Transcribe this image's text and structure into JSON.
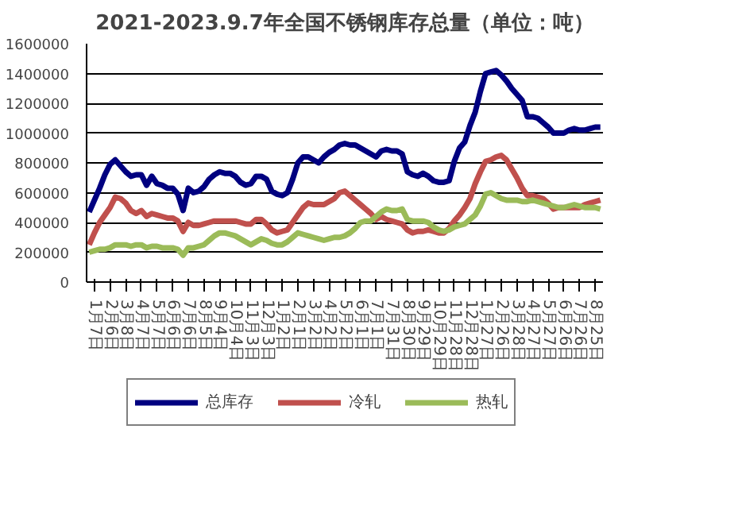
{
  "chart_data": {
    "type": "line",
    "title": "2021-2023.9.7年全国不锈钢库存总量（单位：吨）",
    "categories": [
      null,
      "1月7日",
      null,
      null,
      "2月6日",
      null,
      null,
      "3月8日",
      null,
      null,
      "4月7日",
      null,
      null,
      "5月7日",
      null,
      null,
      "6月6日",
      null,
      null,
      "7月6日",
      null,
      null,
      "8月5日",
      null,
      null,
      "9月4日",
      null,
      null,
      "10月4日",
      null,
      null,
      "11月3日",
      null,
      null,
      "12月3日",
      null,
      null,
      "1月2日",
      null,
      null,
      "2月1日",
      null,
      null,
      "3月2日",
      null,
      null,
      "4月2日",
      null,
      null,
      "5月2日",
      null,
      null,
      "6月1日",
      null,
      null,
      "7月1日",
      null,
      null,
      "7月31日",
      null,
      null,
      "8月30日",
      null,
      null,
      "9月29日",
      null,
      null,
      "10月29日",
      null,
      null,
      "11月28日",
      null,
      null,
      "12月28日",
      null,
      null,
      "1月27日",
      null,
      null,
      "2月26日",
      null,
      null,
      "3月28日",
      null,
      null,
      "4月27日",
      null,
      null,
      "5月27日",
      null,
      null,
      "6月26日",
      null,
      null,
      "7月26日",
      null,
      null,
      "8月25日",
      null
    ],
    "series": [
      {
        "name": "总库存",
        "color": "#000080",
        "values": [
          470000,
          550000,
          630000,
          720000,
          790000,
          820000,
          780000,
          740000,
          710000,
          720000,
          720000,
          650000,
          710000,
          660000,
          650000,
          630000,
          630000,
          590000,
          480000,
          630000,
          600000,
          610000,
          640000,
          690000,
          720000,
          740000,
          730000,
          730000,
          710000,
          670000,
          650000,
          660000,
          710000,
          710000,
          690000,
          610000,
          590000,
          580000,
          600000,
          690000,
          800000,
          840000,
          840000,
          820000,
          800000,
          840000,
          870000,
          890000,
          920000,
          930000,
          920000,
          920000,
          900000,
          880000,
          860000,
          840000,
          880000,
          890000,
          880000,
          880000,
          860000,
          740000,
          720000,
          710000,
          730000,
          710000,
          680000,
          670000,
          670000,
          680000,
          810000,
          900000,
          940000,
          1050000,
          1140000,
          1280000,
          1400000,
          1410000,
          1420000,
          1390000,
          1350000,
          1300000,
          1260000,
          1220000,
          1110000,
          1110000,
          1100000,
          1070000,
          1040000,
          1000000,
          1000000,
          1000000,
          1020000,
          1030000,
          1020000,
          1020000,
          1030000,
          1040000,
          1040000
        ]
      },
      {
        "name": "冷轧",
        "color": "#c0504d",
        "values": [
          250000,
          330000,
          400000,
          450000,
          500000,
          570000,
          560000,
          530000,
          480000,
          460000,
          480000,
          440000,
          460000,
          450000,
          440000,
          430000,
          430000,
          410000,
          340000,
          400000,
          380000,
          380000,
          390000,
          400000,
          410000,
          410000,
          410000,
          410000,
          410000,
          400000,
          390000,
          390000,
          420000,
          420000,
          390000,
          350000,
          330000,
          340000,
          350000,
          400000,
          450000,
          500000,
          530000,
          520000,
          520000,
          520000,
          540000,
          560000,
          600000,
          610000,
          580000,
          550000,
          520000,
          490000,
          460000,
          420000,
          440000,
          420000,
          410000,
          400000,
          390000,
          350000,
          330000,
          340000,
          340000,
          350000,
          340000,
          330000,
          330000,
          360000,
          410000,
          450000,
          500000,
          560000,
          660000,
          740000,
          810000,
          820000,
          840000,
          850000,
          820000,
          760000,
          700000,
          630000,
          580000,
          580000,
          570000,
          560000,
          530000,
          490000,
          500000,
          500000,
          500000,
          500000,
          500000,
          520000,
          530000,
          540000,
          550000
        ]
      },
      {
        "name": "热轧",
        "color": "#9bbb59",
        "values": [
          200000,
          210000,
          220000,
          220000,
          230000,
          250000,
          250000,
          250000,
          240000,
          250000,
          250000,
          230000,
          240000,
          240000,
          230000,
          230000,
          230000,
          220000,
          180000,
          230000,
          230000,
          240000,
          250000,
          280000,
          310000,
          330000,
          330000,
          320000,
          310000,
          290000,
          270000,
          250000,
          270000,
          290000,
          280000,
          260000,
          250000,
          250000,
          270000,
          300000,
          330000,
          320000,
          310000,
          300000,
          290000,
          280000,
          290000,
          300000,
          300000,
          310000,
          330000,
          360000,
          400000,
          410000,
          410000,
          440000,
          470000,
          490000,
          480000,
          480000,
          490000,
          420000,
          410000,
          410000,
          410000,
          400000,
          370000,
          350000,
          340000,
          350000,
          370000,
          380000,
          390000,
          420000,
          450000,
          510000,
          590000,
          600000,
          580000,
          560000,
          550000,
          550000,
          550000,
          540000,
          540000,
          550000,
          540000,
          530000,
          520000,
          510000,
          500000,
          500000,
          510000,
          520000,
          510000,
          500000,
          500000,
          500000,
          490000
        ]
      }
    ],
    "ylim": [
      0,
      1600000
    ],
    "yticks": [
      0,
      200000,
      400000,
      600000,
      800000,
      1000000,
      1200000,
      1400000,
      1600000
    ],
    "grid": "y",
    "legend": "bottom",
    "marker": "none",
    "line_style": "solid"
  }
}
